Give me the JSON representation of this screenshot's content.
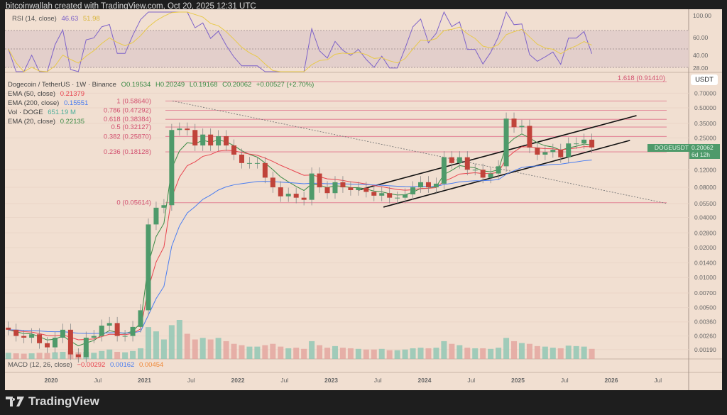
{
  "header": {
    "credit": "bitcoinwallah created with TradingView.com, Oct 20, 2025 12:31 UTC"
  },
  "rsi": {
    "label": "RSI (14, close)",
    "value": "46.63",
    "ma": "51.98",
    "axis": [
      "100.00",
      "60.00",
      "40.00",
      "28.00"
    ]
  },
  "legend": {
    "symbol": "Dogecoin / TetherUS · 1W · Binance",
    "ohlc": {
      "o": "O0.19534",
      "h": "H0.20249",
      "l": "L0.19168",
      "c": "C0.20062",
      "chg": "+0.00527 (+2.70%)"
    },
    "ema50": {
      "label": "EMA (50, close)",
      "value": "0.21379",
      "color": "#e8434e"
    },
    "ema200": {
      "label": "EMA (200, close)",
      "value": "0.15551",
      "color": "#4a7df0"
    },
    "vol": {
      "label": "Vol · DOGE",
      "value": "651.19 M",
      "color": "#4cae9a"
    },
    "ema20": {
      "label": "EMA (20, close)",
      "value": "0.22135",
      "color": "#3b8a45"
    }
  },
  "macd": {
    "label": "MACD (12, 26, close)",
    "hist": "−0.00292",
    "macd": "0.00162",
    "signal": "0.00454"
  },
  "price_axis": {
    "currency": "USDT",
    "last_symbol": "DOGEUSDT",
    "last_price": "0.20062",
    "countdown": "6d 12h"
  },
  "colors": {
    "up": "#4e9a6a",
    "down": "#c0433a",
    "fib": "#e0708a",
    "rsi": "#7e63c9",
    "rsi_ma": "#e8c94a",
    "ema20": "#3b8a45",
    "ema50": "#e8434e",
    "ema200": "#4a7df0"
  },
  "brand": {
    "name": "TradingView"
  },
  "chart_data": {
    "type": "candlestick",
    "scale": "log",
    "start_month": "2019-07",
    "closes": [
      0.003,
      0.0026,
      0.0025,
      0.0027,
      0.0022,
      0.002,
      0.0025,
      0.003,
      0.0017,
      0.0016,
      0.0025,
      0.0026,
      0.0033,
      0.0035,
      0.0026,
      0.0026,
      0.0032,
      0.0047,
      0.034,
      0.05,
      0.053,
      0.3,
      0.31,
      0.3,
      0.21,
      0.27,
      0.21,
      0.26,
      0.21,
      0.17,
      0.14,
      0.14,
      0.14,
      0.1,
      0.08,
      0.065,
      0.069,
      0.063,
      0.06,
      0.11,
      0.08,
      0.07,
      0.09,
      0.08,
      0.075,
      0.079,
      0.072,
      0.066,
      0.07,
      0.063,
      0.063,
      0.068,
      0.08,
      0.09,
      0.08,
      0.087,
      0.16,
      0.14,
      0.16,
      0.12,
      0.12,
      0.1,
      0.11,
      0.13,
      0.39,
      0.32,
      0.33,
      0.2,
      0.17,
      0.18,
      0.19,
      0.16,
      0.22,
      0.22,
      0.24,
      0.20062
    ],
    "volume_m": [
      300,
      250,
      220,
      250,
      300,
      280,
      350,
      400,
      500,
      350,
      400,
      300,
      500,
      700,
      400,
      350,
      500,
      900,
      8000,
      6000,
      3000,
      9000,
      12000,
      5000,
      3000,
      3500,
      3000,
      3500,
      2500,
      1800,
      1500,
      1200,
      1200,
      1500,
      1800,
      1200,
      900,
      1000,
      800,
      2500,
      1500,
      1000,
      1300,
      1000,
      900,
      800,
      700,
      700,
      800,
      600,
      600,
      700,
      900,
      1000,
      900,
      1000,
      2500,
      1800,
      1500,
      1000,
      900,
      900,
      800,
      1000,
      3500,
      2500,
      2000,
      1800,
      1300,
      1200,
      1000,
      900,
      1400,
      1300,
      1200,
      800
    ],
    "fib_levels": [
      {
        "label": "1.618 (0.91410)",
        "price": 0.9141
      },
      {
        "label": "1 (0.58640)",
        "price": 0.5864
      },
      {
        "label": "0.786 (0.47292)",
        "price": 0.47292
      },
      {
        "label": "0.618 (0.38384)",
        "price": 0.38384
      },
      {
        "label": "0.5 (0.32127)",
        "price": 0.32127
      },
      {
        "label": "0.382 (0.25870)",
        "price": 0.2587
      },
      {
        "label": "0.236 (0.18128)",
        "price": 0.18128
      },
      {
        "label": "0 (0.05614)",
        "price": 0.05614
      }
    ],
    "trendlines": [
      {
        "style": "solid",
        "from": [
          2023.56,
          0.0507
        ],
        "to": [
          2026.2,
          0.236
        ]
      },
      {
        "style": "solid",
        "from": [
          2023.29,
          0.075
        ],
        "to": [
          2026.27,
          0.418
        ]
      },
      {
        "style": "dotted",
        "from": [
          2021.3,
          0.586
        ],
        "to": [
          2026.6,
          0.055
        ]
      }
    ],
    "price_ticks": [
      0.7,
      0.5,
      0.35,
      0.25,
      0.12,
      0.08,
      0.055,
      0.04,
      0.028,
      0.02,
      0.014,
      0.01,
      0.007,
      0.005,
      0.0036,
      0.0026,
      0.0019
    ],
    "time_ticks": [
      {
        "label": "2020",
        "t": 2020,
        "major": true
      },
      {
        "label": "Jul",
        "t": 2020.5
      },
      {
        "label": "2021",
        "t": 2021,
        "major": true
      },
      {
        "label": "Jul",
        "t": 2021.5
      },
      {
        "label": "2022",
        "t": 2022,
        "major": true
      },
      {
        "label": "Jul",
        "t": 2022.5
      },
      {
        "label": "2023",
        "t": 2023,
        "major": true
      },
      {
        "label": "Jul",
        "t": 2023.5
      },
      {
        "label": "2024",
        "t": 2024,
        "major": true
      },
      {
        "label": "Jul",
        "t": 2024.5
      },
      {
        "label": "2025",
        "t": 2025,
        "major": true
      },
      {
        "label": "Jul",
        "t": 2025.5
      },
      {
        "label": "2026",
        "t": 2026,
        "major": true
      },
      {
        "label": "Jul",
        "t": 2026.5
      }
    ]
  }
}
